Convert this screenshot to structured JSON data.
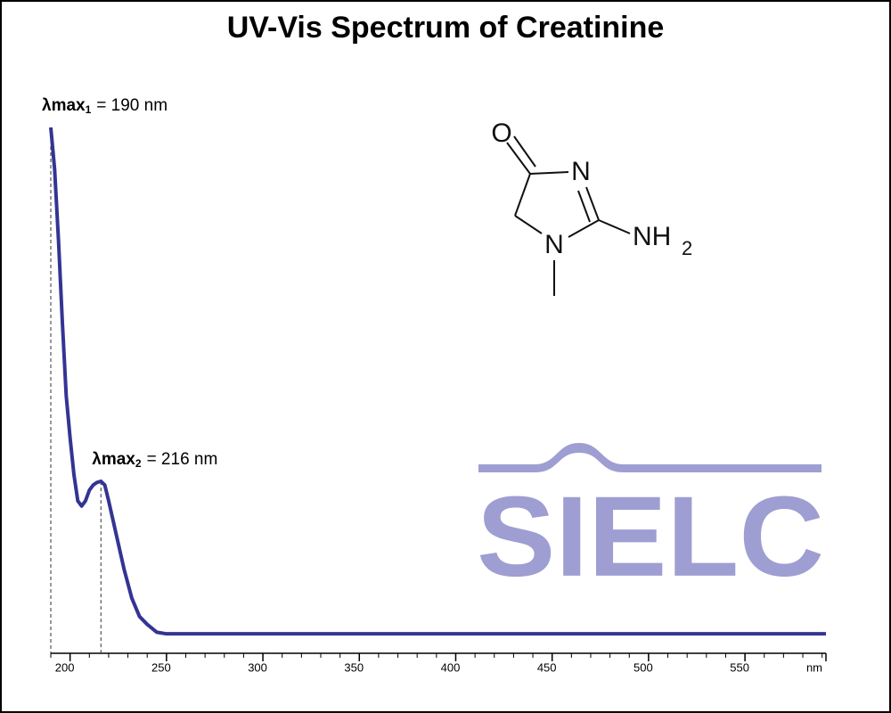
{
  "chart_data": {
    "type": "line",
    "title": "UV-Vis Spectrum of Creatinine",
    "x_label": "nm",
    "x": [
      190,
      192,
      194,
      196,
      198,
      200,
      202,
      204,
      206,
      208,
      210,
      212,
      214,
      216,
      218,
      220,
      224,
      228,
      232,
      236,
      240,
      245,
      250,
      255,
      300,
      400,
      500,
      592
    ],
    "series": [
      {
        "name": "Creatinine",
        "color": "#343494",
        "values": [
          1.0,
          0.92,
          0.785,
          0.63,
          0.49,
          0.41,
          0.34,
          0.29,
          0.28,
          0.29,
          0.31,
          0.32,
          0.325,
          0.327,
          0.32,
          0.29,
          0.225,
          0.16,
          0.105,
          0.07,
          0.055,
          0.04,
          0.037,
          0.037,
          0.037,
          0.037,
          0.037,
          0.037
        ]
      }
    ],
    "xlim": [
      190,
      592
    ],
    "ylim": [
      0,
      1
    ],
    "xticks": [
      200,
      250,
      300,
      350,
      400,
      450,
      500,
      550
    ],
    "xminorticks": [
      190,
      200,
      210,
      220,
      230,
      240,
      250,
      260,
      270,
      280,
      290,
      300,
      310,
      320,
      330,
      340,
      350,
      360,
      370,
      380,
      390,
      400,
      410,
      420,
      430,
      440,
      450,
      460,
      470,
      480,
      490,
      500,
      510,
      520,
      530,
      540,
      550,
      560,
      570,
      580,
      590
    ],
    "annotations": [
      {
        "label": "λmax",
        "subscript": "1",
        "text": "= 190 nm",
        "x": 190,
        "y": 1.0
      },
      {
        "label": "λmax",
        "subscript": "2",
        "text": "= 216 nm",
        "x": 216,
        "y": 0.327
      }
    ],
    "structure": {
      "labels": [
        "O",
        "N",
        "N",
        "NH"
      ],
      "subscript": "2"
    },
    "logo": "SIELC"
  }
}
